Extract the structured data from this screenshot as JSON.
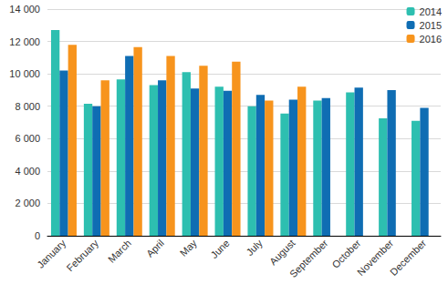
{
  "chart_data": {
    "type": "bar",
    "categories": [
      "January",
      "February",
      "March",
      "April",
      "May",
      "June",
      "July",
      "August",
      "September",
      "October",
      "November",
      "December"
    ],
    "series": [
      {
        "name": "2014",
        "color": "#2dbfb0",
        "values": [
          12700,
          8150,
          9650,
          9300,
          10100,
          9200,
          8000,
          7550,
          8350,
          8850,
          7250,
          7100
        ]
      },
      {
        "name": "2015",
        "color": "#0f6db3",
        "values": [
          10200,
          8000,
          11100,
          9600,
          9100,
          8950,
          8700,
          8400,
          8500,
          9150,
          9000,
          7900
        ]
      },
      {
        "name": "2016",
        "color": "#f7941d",
        "values": [
          11800,
          9600,
          11650,
          11100,
          10500,
          10750,
          8350,
          9200,
          null,
          null,
          null,
          null
        ]
      }
    ],
    "ylim": [
      0,
      14000
    ],
    "yticks": [
      {
        "value": 0,
        "label": "0"
      },
      {
        "value": 2000,
        "label": "2 000"
      },
      {
        "value": 4000,
        "label": "4 000"
      },
      {
        "value": 6000,
        "label": "6 000"
      },
      {
        "value": 8000,
        "label": "8 000"
      },
      {
        "value": 10000,
        "label": "10 000"
      },
      {
        "value": 12000,
        "label": "12 000"
      },
      {
        "value": 14000,
        "label": "14 000"
      }
    ],
    "grid": true,
    "legend": "top-right"
  }
}
